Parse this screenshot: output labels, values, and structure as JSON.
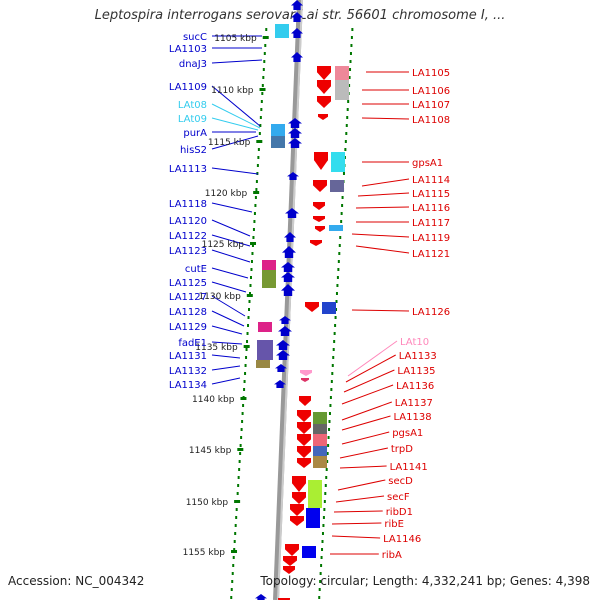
{
  "title": "Leptospira interrogans serovar Lai str. 56601 chromosome I, ...",
  "footer": {
    "accession": "Accession: NC_004342",
    "topology": "Topology: circular; Length: 4,332,241 bp; Genes: 4,398"
  },
  "colors": {
    "left_gene": "#0000cc",
    "left_rna": "#33ccee",
    "right_gene": "#dd0000",
    "right_rna": "#ff88bb",
    "backbone": "#999999",
    "tick": "#007700"
  },
  "kbp_scale": [
    {
      "label": "1105 kbp"
    },
    {
      "label": "1110 kbp"
    },
    {
      "label": "1115 kbp"
    },
    {
      "label": "1120 kbp"
    },
    {
      "label": "1125 kbp"
    },
    {
      "label": "1130 kbp"
    },
    {
      "label": "1135 kbp"
    },
    {
      "label": "1140 kbp"
    },
    {
      "label": "1145 kbp"
    },
    {
      "label": "1150 kbp"
    },
    {
      "label": "1155 kbp"
    }
  ],
  "left_labels": [
    {
      "text": "sucC",
      "type": "gene"
    },
    {
      "text": "LA1103",
      "type": "gene"
    },
    {
      "text": "dnaJ3",
      "type": "gene"
    },
    {
      "text": "LA1109",
      "type": "gene"
    },
    {
      "text": "LAt08",
      "type": "rna"
    },
    {
      "text": "LAt09",
      "type": "rna"
    },
    {
      "text": "purA",
      "type": "gene"
    },
    {
      "text": "hisS2",
      "type": "gene"
    },
    {
      "text": "LA1113",
      "type": "gene"
    },
    {
      "text": "LA1118",
      "type": "gene"
    },
    {
      "text": "LA1120",
      "type": "gene"
    },
    {
      "text": "LA1122",
      "type": "gene"
    },
    {
      "text": "LA1123",
      "type": "gene"
    },
    {
      "text": "cutE",
      "type": "gene"
    },
    {
      "text": "LA1125",
      "type": "gene"
    },
    {
      "text": "LA1127",
      "type": "gene"
    },
    {
      "text": "LA1128",
      "type": "gene"
    },
    {
      "text": "LA1129",
      "type": "gene"
    },
    {
      "text": "fadE1",
      "type": "gene"
    },
    {
      "text": "LA1131",
      "type": "gene"
    },
    {
      "text": "LA1132",
      "type": "gene"
    },
    {
      "text": "LA1134",
      "type": "gene"
    }
  ],
  "right_labels": [
    {
      "text": "LA1105",
      "type": "gene"
    },
    {
      "text": "LA1106",
      "type": "gene"
    },
    {
      "text": "LA1107",
      "type": "gene"
    },
    {
      "text": "LA1108",
      "type": "gene"
    },
    {
      "text": "gpsA1",
      "type": "gene"
    },
    {
      "text": "LA1114",
      "type": "gene"
    },
    {
      "text": "LA1115",
      "type": "gene"
    },
    {
      "text": "LA1116",
      "type": "gene"
    },
    {
      "text": "LA1117",
      "type": "gene"
    },
    {
      "text": "LA1119",
      "type": "gene"
    },
    {
      "text": "LA1121",
      "type": "gene"
    },
    {
      "text": "LA1126",
      "type": "gene"
    },
    {
      "text": "LAt10",
      "type": "rna"
    },
    {
      "text": "LA1133",
      "type": "gene"
    },
    {
      "text": "LA1135",
      "type": "gene"
    },
    {
      "text": "LA1136",
      "type": "gene"
    },
    {
      "text": "LA1137",
      "type": "gene"
    },
    {
      "text": "LA1138",
      "type": "gene"
    },
    {
      "text": "pgsA1",
      "type": "gene"
    },
    {
      "text": "trpD",
      "type": "gene"
    },
    {
      "text": "LA1141",
      "type": "gene"
    },
    {
      "text": "secD",
      "type": "gene"
    },
    {
      "text": "secF",
      "type": "gene"
    },
    {
      "text": "ribD1",
      "type": "gene"
    },
    {
      "text": "ribE",
      "type": "gene"
    },
    {
      "text": "LA1146",
      "type": "gene"
    },
    {
      "text": "ribA",
      "type": "gene"
    }
  ]
}
